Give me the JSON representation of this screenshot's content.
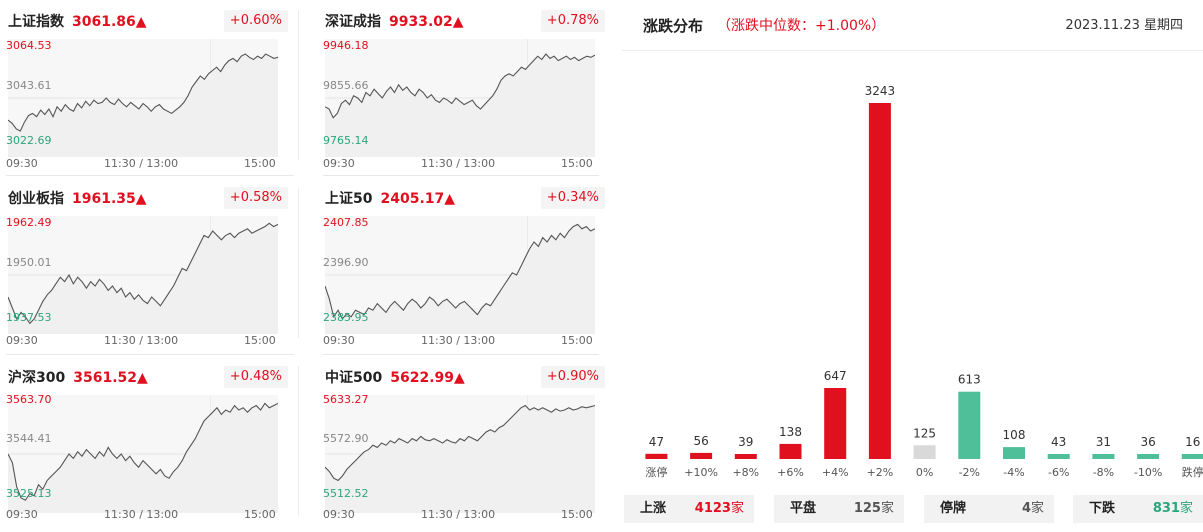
{
  "indices": [
    {
      "name": "上证指数",
      "price": "3061.86▲",
      "change": "+0.60%",
      "high": "3064.53",
      "mid": "3043.61",
      "low": "3022.69",
      "series": [
        0.3,
        0.27,
        0.22,
        0.2,
        0.28,
        0.34,
        0.36,
        0.33,
        0.39,
        0.35,
        0.4,
        0.33,
        0.42,
        0.38,
        0.44,
        0.4,
        0.38,
        0.45,
        0.41,
        0.47,
        0.43,
        0.48,
        0.45,
        0.46,
        0.5,
        0.46,
        0.44,
        0.49,
        0.45,
        0.42,
        0.46,
        0.43,
        0.4,
        0.45,
        0.42,
        0.38,
        0.42,
        0.44,
        0.4,
        0.38,
        0.36,
        0.39,
        0.42,
        0.46,
        0.52,
        0.6,
        0.65,
        0.7,
        0.67,
        0.72,
        0.75,
        0.78,
        0.74,
        0.8,
        0.84,
        0.86,
        0.83,
        0.88,
        0.9,
        0.87,
        0.85,
        0.88,
        0.86,
        0.9,
        0.88,
        0.86,
        0.87
      ]
    },
    {
      "name": "深证成指",
      "price": "9933.02▲",
      "change": "+0.78%",
      "high": "9946.18",
      "mid": "9855.66",
      "low": "9765.14",
      "series": [
        0.42,
        0.4,
        0.32,
        0.36,
        0.45,
        0.48,
        0.44,
        0.52,
        0.5,
        0.46,
        0.55,
        0.52,
        0.58,
        0.54,
        0.5,
        0.56,
        0.6,
        0.55,
        0.62,
        0.57,
        0.6,
        0.55,
        0.52,
        0.58,
        0.55,
        0.5,
        0.53,
        0.48,
        0.46,
        0.5,
        0.48,
        0.45,
        0.5,
        0.47,
        0.44,
        0.46,
        0.48,
        0.43,
        0.4,
        0.44,
        0.48,
        0.52,
        0.58,
        0.66,
        0.7,
        0.72,
        0.7,
        0.74,
        0.78,
        0.76,
        0.8,
        0.84,
        0.88,
        0.85,
        0.9,
        0.86,
        0.88,
        0.84,
        0.86,
        0.88,
        0.85,
        0.87,
        0.84,
        0.86,
        0.88,
        0.87,
        0.89
      ]
    },
    {
      "name": "创业板指",
      "price": "1961.35▲",
      "change": "+0.58%",
      "high": "1962.49",
      "mid": "1950.01",
      "low": "1937.53",
      "series": [
        0.3,
        0.2,
        0.1,
        0.16,
        0.12,
        0.06,
        0.1,
        0.18,
        0.26,
        0.32,
        0.36,
        0.42,
        0.48,
        0.44,
        0.5,
        0.42,
        0.48,
        0.44,
        0.38,
        0.44,
        0.4,
        0.46,
        0.42,
        0.36,
        0.4,
        0.34,
        0.38,
        0.3,
        0.34,
        0.28,
        0.32,
        0.27,
        0.24,
        0.3,
        0.26,
        0.22,
        0.28,
        0.34,
        0.4,
        0.48,
        0.56,
        0.54,
        0.62,
        0.7,
        0.78,
        0.86,
        0.84,
        0.9,
        0.86,
        0.82,
        0.86,
        0.88,
        0.84,
        0.88,
        0.9,
        0.92,
        0.88,
        0.9,
        0.92,
        0.94,
        0.97,
        0.94,
        0.96
      ]
    },
    {
      "name": "上证50",
      "price": "2405.17▲",
      "change": "+0.34%",
      "high": "2407.85",
      "mid": "2396.90",
      "low": "2385.95",
      "series": [
        0.4,
        0.28,
        0.12,
        0.18,
        0.1,
        0.15,
        0.12,
        0.18,
        0.16,
        0.14,
        0.2,
        0.18,
        0.24,
        0.2,
        0.16,
        0.22,
        0.26,
        0.22,
        0.18,
        0.24,
        0.28,
        0.25,
        0.2,
        0.24,
        0.3,
        0.27,
        0.22,
        0.26,
        0.28,
        0.24,
        0.2,
        0.24,
        0.26,
        0.22,
        0.18,
        0.14,
        0.2,
        0.24,
        0.22,
        0.28,
        0.34,
        0.4,
        0.46,
        0.52,
        0.5,
        0.58,
        0.66,
        0.74,
        0.8,
        0.76,
        0.84,
        0.8,
        0.86,
        0.82,
        0.88,
        0.84,
        0.9,
        0.94,
        0.96,
        0.92,
        0.94,
        0.9,
        0.92
      ]
    },
    {
      "name": "沪深300",
      "price": "3561.52▲",
      "change": "+0.48%",
      "high": "3563.70",
      "mid": "3544.41",
      "low": "3525.13",
      "series": [
        0.5,
        0.42,
        0.2,
        0.1,
        0.08,
        0.14,
        0.12,
        0.22,
        0.18,
        0.26,
        0.3,
        0.34,
        0.38,
        0.44,
        0.5,
        0.46,
        0.52,
        0.48,
        0.54,
        0.5,
        0.46,
        0.52,
        0.48,
        0.56,
        0.5,
        0.46,
        0.5,
        0.44,
        0.48,
        0.42,
        0.38,
        0.44,
        0.4,
        0.36,
        0.32,
        0.36,
        0.3,
        0.28,
        0.34,
        0.38,
        0.44,
        0.52,
        0.58,
        0.64,
        0.72,
        0.8,
        0.84,
        0.88,
        0.92,
        0.86,
        0.9,
        0.88,
        0.94,
        0.9,
        0.92,
        0.88,
        0.92,
        0.94,
        0.9,
        0.96,
        0.92,
        0.94,
        0.96
      ]
    },
    {
      "name": "中证500",
      "price": "5622.99▲",
      "change": "+0.90%",
      "high": "5633.27",
      "mid": "5572.90",
      "low": "5512.52",
      "series": [
        0.38,
        0.34,
        0.28,
        0.26,
        0.3,
        0.36,
        0.4,
        0.44,
        0.48,
        0.52,
        0.54,
        0.58,
        0.56,
        0.6,
        0.58,
        0.62,
        0.6,
        0.64,
        0.62,
        0.6,
        0.64,
        0.62,
        0.66,
        0.63,
        0.62,
        0.64,
        0.62,
        0.6,
        0.63,
        0.61,
        0.6,
        0.64,
        0.62,
        0.66,
        0.64,
        0.62,
        0.66,
        0.7,
        0.72,
        0.7,
        0.74,
        0.76,
        0.8,
        0.84,
        0.88,
        0.92,
        0.94,
        0.9,
        0.92,
        0.9,
        0.92,
        0.9,
        0.88,
        0.91,
        0.89,
        0.9,
        0.92,
        0.9,
        0.91,
        0.93,
        0.92,
        0.93,
        0.94
      ]
    }
  ],
  "time_labels": {
    "start": "09:30",
    "middle": "11:30 / 13:00",
    "end": "15:00"
  },
  "distribution": {
    "title": "涨跌分布",
    "subtitle": "（涨跌中位数：+1.00%）",
    "date": "2023.11.23 星期四"
  },
  "chart_data": {
    "type": "bar",
    "categories": [
      "涨停",
      "+10%",
      "+8%",
      "+6%",
      "+4%",
      "+2%",
      "0%",
      "-2%",
      "-4%",
      "-6%",
      "-8%",
      "-10%",
      "跌停"
    ],
    "values": [
      47,
      56,
      39,
      138,
      647,
      3243,
      125,
      613,
      108,
      43,
      31,
      36,
      16
    ],
    "ylim": [
      0,
      3243
    ],
    "colors": {
      "up": "#e0101f",
      "flat": "#d9d9d9",
      "down": "#4fbf9a"
    },
    "kinds": [
      "up",
      "up",
      "up",
      "up",
      "up",
      "up",
      "flat",
      "down",
      "down",
      "down",
      "down",
      "down",
      "down"
    ]
  },
  "summary": {
    "rise_label": "上涨",
    "rise_value": "4123",
    "rise_unit": "家",
    "flat_label": "平盘",
    "flat_value": "125",
    "flat_unit": "家",
    "halt_label": "停牌",
    "halt_value": "4",
    "halt_unit": "家",
    "fall_label": "下跌",
    "fall_value": "831",
    "fall_unit": "家"
  },
  "colors": {
    "up": "#e0101f",
    "down": "#2ba67c",
    "line": "#555555"
  }
}
